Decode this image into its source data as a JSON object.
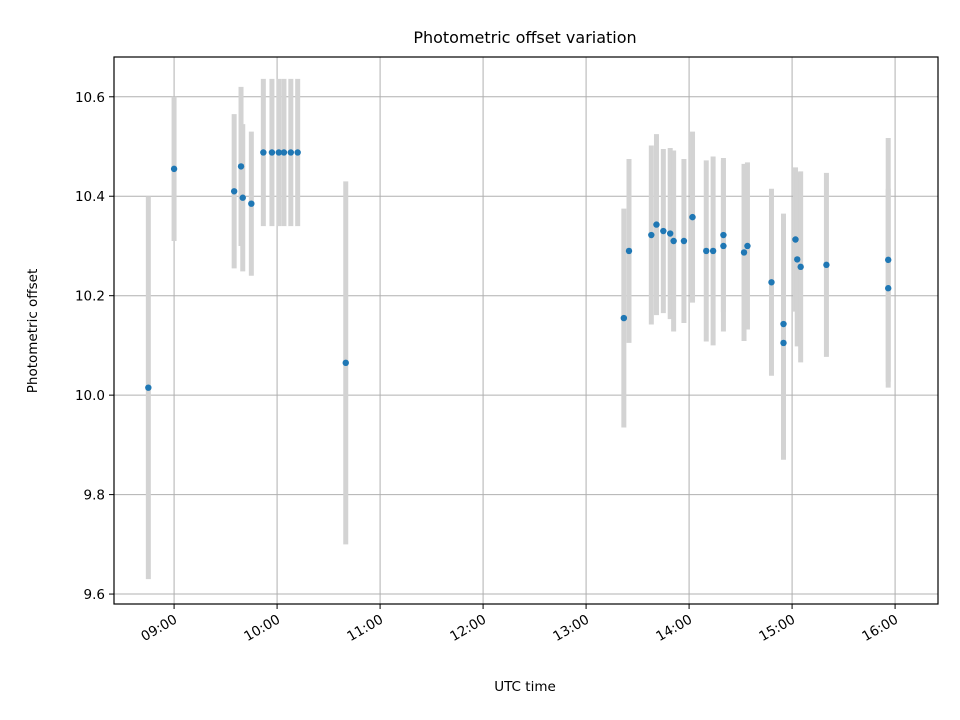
{
  "chart_data": {
    "type": "scatter",
    "title": "Photometric offset variation",
    "xlabel": "UTC time",
    "ylabel": "Photometric offset",
    "x_ticks": [
      "09:00",
      "10:00",
      "11:00",
      "12:00",
      "13:00",
      "14:00",
      "15:00",
      "16:00"
    ],
    "y_ticks": [
      "9.6",
      "9.8",
      "10.0",
      "10.2",
      "10.4",
      "10.6"
    ],
    "xlim": [
      "08:25",
      "16:25"
    ],
    "ylim": [
      9.58,
      10.68
    ],
    "grid": true,
    "point_color": "#1f77b4",
    "errorbar_color": "#d3d3d3",
    "series": [
      {
        "points": [
          {
            "x": "08:45",
            "y": 10.015,
            "err": 0.385
          },
          {
            "x": "09:00",
            "y": 10.455,
            "err": 0.145
          },
          {
            "x": "09:35",
            "y": 10.41,
            "err": 0.155
          },
          {
            "x": "09:39",
            "y": 10.46,
            "err": 0.16
          },
          {
            "x": "09:40",
            "y": 10.397,
            "err": 0.148
          },
          {
            "x": "09:45",
            "y": 10.385,
            "err": 0.145
          },
          {
            "x": "09:52",
            "y": 10.488,
            "err": 0.148
          },
          {
            "x": "09:57",
            "y": 10.488,
            "err": 0.148
          },
          {
            "x": "10:01",
            "y": 10.488,
            "err": 0.148
          },
          {
            "x": "10:04",
            "y": 10.488,
            "err": 0.148
          },
          {
            "x": "10:08",
            "y": 10.488,
            "err": 0.148
          },
          {
            "x": "10:12",
            "y": 10.488,
            "err": 0.148
          },
          {
            "x": "10:40",
            "y": 10.065,
            "err": 0.365
          },
          {
            "x": "13:22",
            "y": 10.155,
            "err": 0.22
          },
          {
            "x": "13:25",
            "y": 10.29,
            "err": 0.185
          },
          {
            "x": "13:38",
            "y": 10.322,
            "err": 0.18
          },
          {
            "x": "13:41",
            "y": 10.343,
            "err": 0.182
          },
          {
            "x": "13:45",
            "y": 10.33,
            "err": 0.165
          },
          {
            "x": "13:49",
            "y": 10.325,
            "err": 0.172
          },
          {
            "x": "13:51",
            "y": 10.31,
            "err": 0.182
          },
          {
            "x": "13:57",
            "y": 10.31,
            "err": 0.165
          },
          {
            "x": "14:02",
            "y": 10.358,
            "err": 0.172
          },
          {
            "x": "14:10",
            "y": 10.29,
            "err": 0.182
          },
          {
            "x": "14:14",
            "y": 10.29,
            "err": 0.19
          },
          {
            "x": "14:20",
            "y": 10.322,
            "err": 0.155
          },
          {
            "x": "14:20",
            "y": 10.3,
            "err": 0.172
          },
          {
            "x": "14:32",
            "y": 10.287,
            "err": 0.178
          },
          {
            "x": "14:34",
            "y": 10.3,
            "err": 0.168
          },
          {
            "x": "14:48",
            "y": 10.227,
            "err": 0.188
          },
          {
            "x": "14:55",
            "y": 10.143,
            "err": 0.222
          },
          {
            "x": "14:55",
            "y": 10.105,
            "err": 0.235
          },
          {
            "x": "15:02",
            "y": 10.313,
            "err": 0.145
          },
          {
            "x": "15:03",
            "y": 10.273,
            "err": 0.175
          },
          {
            "x": "15:05",
            "y": 10.258,
            "err": 0.192
          },
          {
            "x": "15:20",
            "y": 10.262,
            "err": 0.185
          },
          {
            "x": "15:56",
            "y": 10.272,
            "err": 0.245
          },
          {
            "x": "15:56",
            "y": 10.215,
            "err": 0.2
          }
        ]
      }
    ]
  }
}
